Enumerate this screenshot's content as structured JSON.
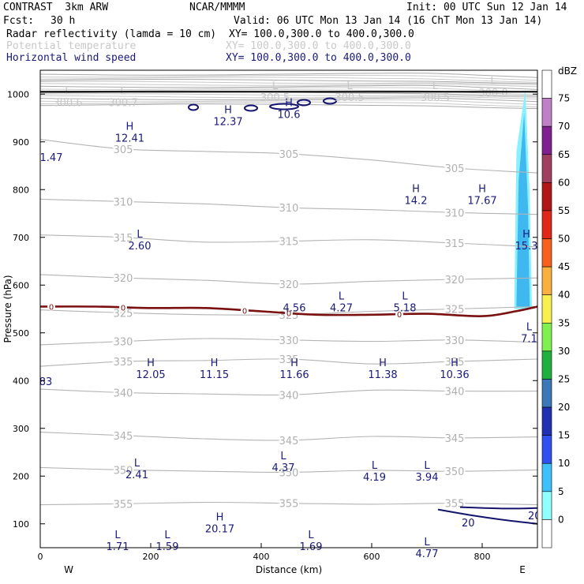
{
  "header": {
    "model": "CONTRAST  3km ARW",
    "center": "NCAR/MMMM",
    "init": "Init: 00 UTC Sun 12 Jan 14",
    "fcst_label": "Fcst:",
    "fcst_value": "30 h",
    "valid": "Valid: 06 UTC Mon 13 Jan 14 (16 ChT Mon 13 Jan 14)",
    "fields": [
      {
        "name": "Radar reflectivity (lamda = 10 cm)",
        "xy": "XY= 100.0,300.0 to 400.0,300.0",
        "color": "#000000"
      },
      {
        "name": "Potential temperature",
        "xy": "XY= 100.0,300.0 to 400.0,300.0",
        "color": "#c8c8c8"
      },
      {
        "name": "Horizontal wind speed",
        "xy": "XY= 100.0,300.0 to 400.0,300.0",
        "color": "#1a1a7a"
      }
    ]
  },
  "chart_data": {
    "type": "cross-section",
    "xlabel": "Distance (km)",
    "ylabel": "Pressure (hPa)",
    "xlim": [
      0,
      900
    ],
    "ylim": [
      1050,
      50
    ],
    "x_ticks": [
      0,
      200,
      400,
      600,
      800
    ],
    "y_ticks": [
      100,
      200,
      300,
      400,
      500,
      600,
      700,
      800,
      900,
      1000
    ],
    "endpoint_left": "W",
    "endpoint_right": "E",
    "theta_contours": [
      {
        "label": "355",
        "p": [
          140,
          142,
          145,
          143,
          141,
          143,
          140
        ]
      },
      {
        "label": "350",
        "p": [
          218,
          213,
          210,
          208,
          212,
          210,
          213
        ]
      },
      {
        "label": "345",
        "p": [
          292,
          285,
          278,
          275,
          283,
          280,
          282
        ]
      },
      {
        "label": "340",
        "p": [
          382,
          375,
          372,
          370,
          380,
          378,
          378
        ]
      },
      {
        "label": "335",
        "p": [
          430,
          440,
          442,
          445,
          435,
          440,
          445
        ]
      },
      {
        "label": "330",
        "p": [
          475,
          482,
          488,
          485,
          482,
          485,
          480
        ]
      },
      {
        "label": "325",
        "p": [
          548,
          542,
          538,
          538,
          545,
          550,
          555
        ]
      },
      {
        "label": "320",
        "p": [
          622,
          615,
          610,
          602,
          608,
          612,
          615
        ]
      },
      {
        "label": "315",
        "p": [
          705,
          700,
          690,
          692,
          695,
          688,
          680
        ]
      },
      {
        "label": "310",
        "p": [
          780,
          775,
          770,
          762,
          758,
          752,
          748
        ]
      },
      {
        "label": "305",
        "p": [
          905,
          885,
          880,
          875,
          862,
          845,
          835
        ]
      }
    ],
    "theta_contour_x": [
      0,
      150,
      300,
      450,
      600,
      750,
      900
    ],
    "zero_isotherm": {
      "label": "0",
      "x": [
        0,
        100,
        200,
        300,
        400,
        500,
        600,
        700,
        800,
        860,
        900
      ],
      "p": [
        555,
        555,
        552,
        552,
        545,
        538,
        538,
        540,
        535,
        545,
        555
      ]
    },
    "wind_20_contours": [
      {
        "label": "20",
        "x": [
          720,
          780,
          840,
          900
        ],
        "p": [
          130,
          118,
          108,
          100
        ]
      },
      {
        "label": "20",
        "x": [
          760,
          840,
          900
        ],
        "p": [
          135,
          132,
          133
        ]
      }
    ],
    "max_min_marks": [
      {
        "kind": "L",
        "value": "1.71",
        "x": 140,
        "p": 70,
        "color": "#1a1a7a"
      },
      {
        "kind": "L",
        "value": "1.59",
        "x": 230,
        "p": 70,
        "color": "#1a1a7a"
      },
      {
        "kind": "H",
        "value": "20.17",
        "x": 325,
        "p": 107,
        "color": "#1a1a7a"
      },
      {
        "kind": "L",
        "value": "1.69",
        "x": 490,
        "p": 70,
        "color": "#1a1a7a"
      },
      {
        "kind": "L",
        "value": "4.77",
        "x": 700,
        "p": 55,
        "color": "#1a1a7a"
      },
      {
        "kind": "L",
        "value": "2.41",
        "x": 175,
        "p": 220,
        "color": "#1a1a7a"
      },
      {
        "kind": "L",
        "value": "4.37",
        "x": 440,
        "p": 235,
        "color": "#1a1a7a"
      },
      {
        "kind": "L",
        "value": "4.19",
        "x": 605,
        "p": 215,
        "color": "#1a1a7a"
      },
      {
        "kind": "L",
        "value": "3.94",
        "x": 700,
        "p": 215,
        "color": "#1a1a7a"
      },
      {
        "kind": "",
        "value": "83",
        "x": 10,
        "p": 415,
        "color": "#1a1a7a"
      },
      {
        "kind": "H",
        "value": "12.05",
        "x": 200,
        "p": 430,
        "color": "#1a1a7a"
      },
      {
        "kind": "H",
        "value": "11.15",
        "x": 315,
        "p": 430,
        "color": "#1a1a7a"
      },
      {
        "kind": "H",
        "value": "11.66",
        "x": 460,
        "p": 430,
        "color": "#1a1a7a"
      },
      {
        "kind": "H",
        "value": "11.38",
        "x": 620,
        "p": 430,
        "color": "#1a1a7a"
      },
      {
        "kind": "H",
        "value": "10.36",
        "x": 750,
        "p": 430,
        "color": "#1a1a7a"
      },
      {
        "kind": "L",
        "value": "7.1",
        "x": 885,
        "p": 505,
        "color": "#1a1a7a"
      },
      {
        "kind": "",
        "value": "4.56",
        "x": 460,
        "p": 570,
        "color": "#1a1a7a"
      },
      {
        "kind": "L",
        "value": "4.27",
        "x": 545,
        "p": 570,
        "color": "#1a1a7a"
      },
      {
        "kind": "L",
        "value": "5.18",
        "x": 660,
        "p": 570,
        "color": "#1a1a7a"
      },
      {
        "kind": "L",
        "value": "2.60",
        "x": 180,
        "p": 700,
        "color": "#1a1a7a"
      },
      {
        "kind": "H",
        "value": "15.3",
        "x": 880,
        "p": 700,
        "color": "#1a1a7a"
      },
      {
        "kind": "H",
        "value": "14.2",
        "x": 680,
        "p": 795,
        "color": "#1a1a7a"
      },
      {
        "kind": "H",
        "value": "17.67",
        "x": 800,
        "p": 795,
        "color": "#1a1a7a"
      },
      {
        "kind": "",
        "value": "1.47",
        "x": 20,
        "p": 885,
        "color": "#1a1a7a"
      },
      {
        "kind": "H",
        "value": "12.41",
        "x": 162,
        "p": 925,
        "color": "#1a1a7a"
      },
      {
        "kind": "H",
        "value": "12.37",
        "x": 340,
        "p": 960,
        "color": "#1a1a7a"
      },
      {
        "kind": "H",
        "value": "10.6",
        "x": 450,
        "p": 975,
        "color": "#1a1a7a"
      },
      {
        "kind": "L",
        "value": "300.6",
        "x": 50,
        "p": 1000,
        "color": "#c8c8c8"
      },
      {
        "kind": "L",
        "value": "300.7",
        "x": 150,
        "p": 1000,
        "color": "#c8c8c8"
      },
      {
        "kind": "L",
        "value": "300.5",
        "x": 425,
        "p": 1010,
        "color": "#c8c8c8"
      },
      {
        "kind": "L",
        "value": "300.5",
        "x": 560,
        "p": 1010,
        "color": "#c8c8c8"
      },
      {
        "kind": "L",
        "value": "300.5",
        "x": 715,
        "p": 1010,
        "color": "#c8c8c8"
      },
      {
        "kind": "L",
        "value": "300.0",
        "x": 820,
        "p": 1020,
        "color": "#c8c8c8"
      }
    ],
    "reflectivity_cells": [
      {
        "x": [
          858,
          862,
          878,
          886,
          890
        ],
        "p": [
          550,
          880,
          1010,
          790,
          550
        ],
        "color": "#88f0ff"
      },
      {
        "x": [
          862,
          866,
          876,
          883,
          886
        ],
        "p": [
          555,
          820,
          960,
          760,
          555
        ],
        "color": "#3fb8f0"
      }
    ],
    "legend": {
      "unit": "dBZ",
      "levels": [
        "0",
        "5",
        "10",
        "15",
        "20",
        "25",
        "30",
        "35",
        "40",
        "45",
        "50",
        "55",
        "60",
        "65",
        "70",
        "75"
      ],
      "colors": [
        "#ffffff",
        "#90ffff",
        "#40c0f8",
        "#3050f0",
        "#2030b0",
        "#3a78b8",
        "#20b040",
        "#80f050",
        "#f8f050",
        "#f8b040",
        "#f86020",
        "#e02818",
        "#b01818",
        "#a04060",
        "#802090",
        "#c080c8",
        "#ffffff"
      ]
    }
  }
}
